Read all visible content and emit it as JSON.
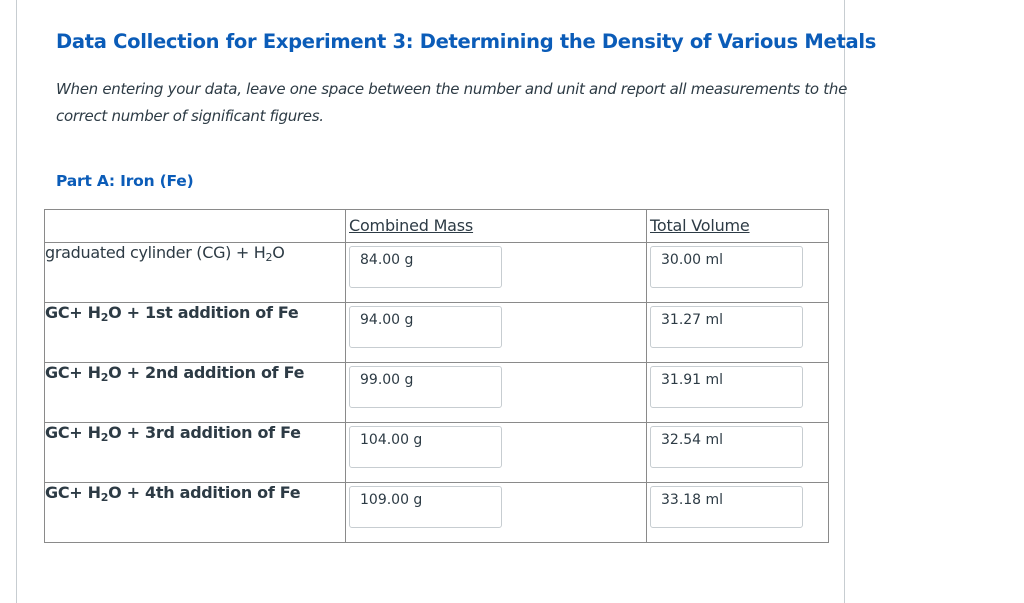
{
  "page": {
    "title": "Data Collection for Experiment 3: Determining the Density of Various Metals",
    "instructions": "When entering your data, leave one space between the number and unit and report all measurements to the correct number of significant figures.",
    "part_heading": "Part A: Iron (Fe)"
  },
  "table": {
    "headers": [
      "",
      "Combined Mass",
      "Total Volume"
    ],
    "rows": [
      {
        "label_pre": "graduated cylinder (CG) + H",
        "label_sub": "2",
        "label_post": "O",
        "mass": "84.00 g",
        "volume": "30.00 ml"
      },
      {
        "label_pre": "GC+ H",
        "label_sub": "2",
        "label_post": "O + 1st addition of Fe",
        "mass": "94.00 g",
        "volume": "31.27 ml"
      },
      {
        "label_pre": "GC+ H",
        "label_sub": "2",
        "label_post": "O + 2nd addition of Fe",
        "mass": "99.00 g",
        "volume": "31.91 ml"
      },
      {
        "label_pre": "GC+ H",
        "label_sub": "2",
        "label_post": "O + 3rd addition of Fe",
        "mass": "104.00 g",
        "volume": "32.54 ml"
      },
      {
        "label_pre": "GC+ H",
        "label_sub": "2",
        "label_post": "O + 4th addition of Fe",
        "mass": "109.00 g",
        "volume": "33.18 ml"
      }
    ]
  }
}
